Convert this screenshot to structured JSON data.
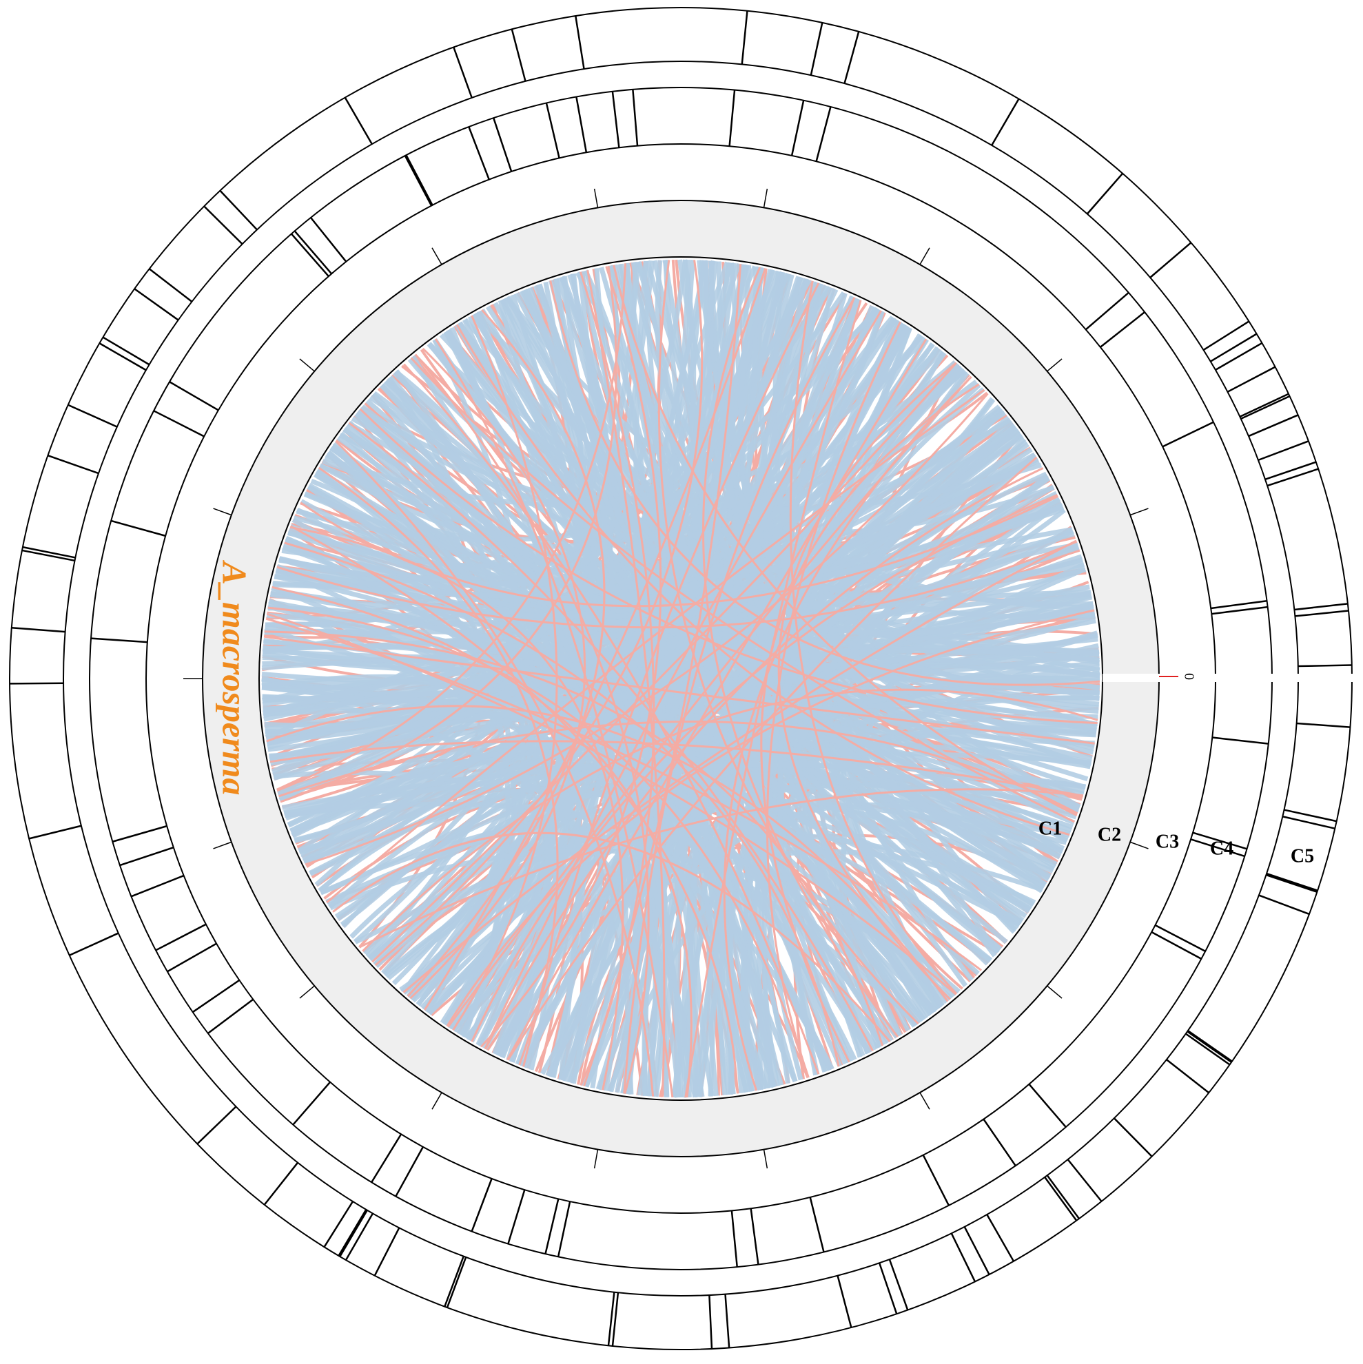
{
  "species_label": "A_macrosperma",
  "ticks": [
    0
  ],
  "track_labels": [
    "C1",
    "C2",
    "C3",
    "C4",
    "C5"
  ]
}
